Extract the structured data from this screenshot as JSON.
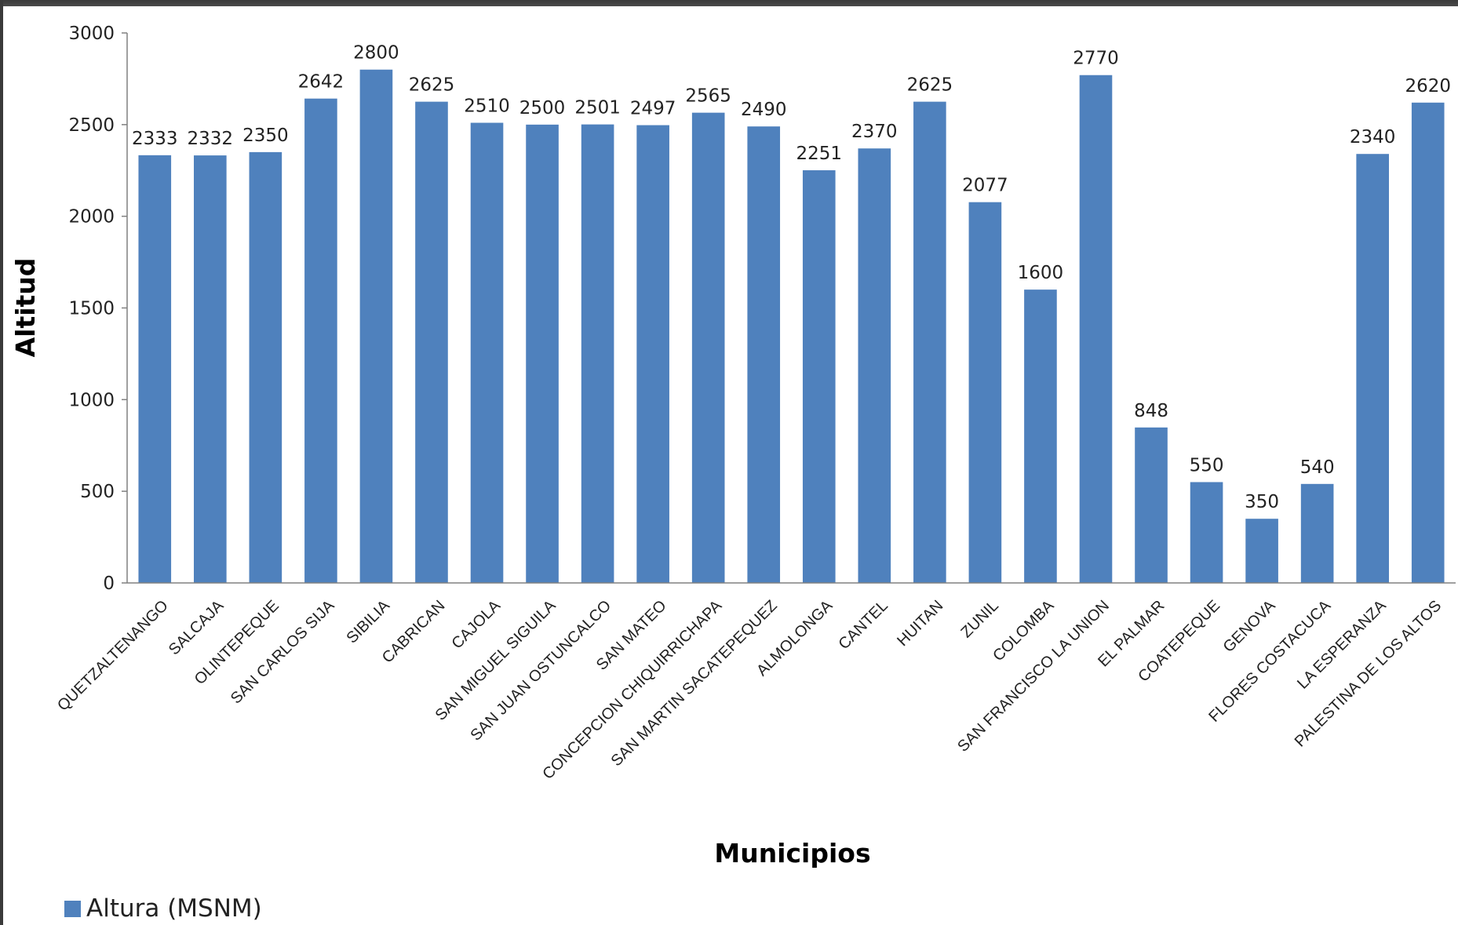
{
  "chart_data": {
    "type": "bar",
    "categories": [
      "QUETZALTENANGO",
      "SALCAJA",
      "OLINTEPEQUE",
      "SAN CARLOS SIJA",
      "SIBILIA",
      "CABRICAN",
      "CAJOLA",
      "SAN MIGUEL SIGUILA",
      "SAN JUAN OSTUNCALCO",
      "SAN MATEO",
      "CONCEPCION CHIQUIRRICHAPA",
      "SAN MARTIN SACATEPEQUEZ",
      "ALMOLONGA",
      "CANTEL",
      "HUITAN",
      "ZUNIL",
      "COLOMBA",
      "SAN FRANCISCO LA UNION",
      "EL PALMAR",
      "COATEPEQUE",
      "GENOVA",
      "FLORES COSTACUCA",
      "LA ESPERANZA",
      "PALESTINA DE LOS ALTOS"
    ],
    "series": [
      {
        "name": "Altura (MSNM)",
        "values": [
          2333,
          2332,
          2350,
          2642,
          2800,
          2625,
          2510,
          2500,
          2501,
          2497,
          2565,
          2490,
          2251,
          2370,
          2625,
          2077,
          1600,
          2770,
          848,
          550,
          350,
          540,
          2340,
          2620
        ],
        "color": "#4f81bd"
      }
    ],
    "xlabel": "Municipios",
    "ylabel": "Altitud",
    "ylim": [
      0,
      3000
    ],
    "yticks": [
      "0",
      "500",
      "1000",
      "1500",
      "2000",
      "2500",
      "3000"
    ],
    "data_labels": true,
    "grid": false,
    "legend_position": "bottom-left"
  }
}
